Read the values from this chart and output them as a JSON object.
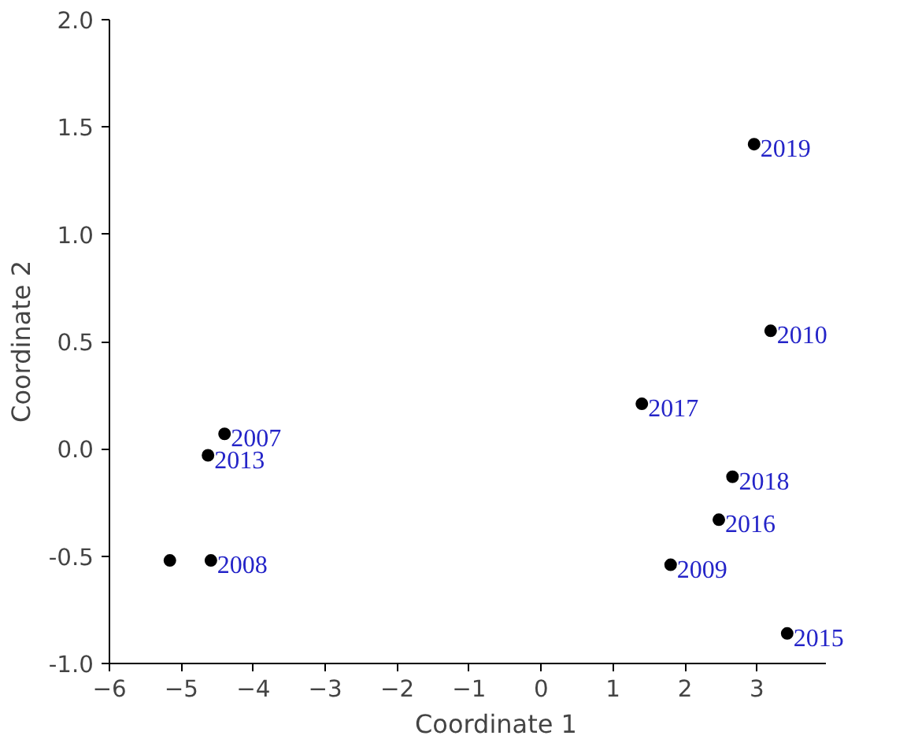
{
  "chart_data": {
    "type": "scatter",
    "xlabel": "Coordinate 1",
    "ylabel": "Coordinate 2",
    "x": [
      2.96,
      3.19,
      1.4,
      2.66,
      2.47,
      1.8,
      3.42,
      -4.4,
      -4.63,
      -5.16,
      -4.59
    ],
    "series": [
      {
        "color": "#000000",
        "values": [
          1.42,
          0.55,
          0.21,
          -0.13,
          -0.33,
          -0.54,
          -0.86,
          0.07,
          -0.03,
          -0.52,
          -0.52
        ],
        "name": null
      }
    ],
    "annotations": [
      {
        "text": "2019",
        "x": 2.96,
        "y": 1.42
      },
      {
        "text": "2010",
        "x": 3.19,
        "y": 0.55
      },
      {
        "text": "2017",
        "x": 1.4,
        "y": 0.21
      },
      {
        "text": "2018",
        "x": 2.66,
        "y": -0.13
      },
      {
        "text": "2016",
        "x": 2.47,
        "y": -0.33
      },
      {
        "text": "2009",
        "x": 1.8,
        "y": -0.54
      },
      {
        "text": "2015",
        "x": 3.42,
        "y": -0.86
      },
      {
        "text": "2007",
        "x": -4.4,
        "y": 0.07
      },
      {
        "text": "2013",
        "x": -4.63,
        "y": -0.03
      },
      {
        "text": "2008",
        "x": -4.59,
        "y": -0.52
      }
    ],
    "xlim": [
      -6,
      3.95
    ],
    "ylim": [
      -1,
      2
    ],
    "xticks": [
      -6,
      -5,
      -4,
      -3,
      -2,
      -1,
      0,
      1,
      2,
      3
    ],
    "yticks": [
      {
        "value": -1,
        "label": "-1.0"
      },
      {
        "value": -0.5,
        "label": "-0.5"
      },
      {
        "value": 0,
        "label": "0.0"
      },
      {
        "value": 0.5,
        "label": "0.5"
      },
      {
        "value": 1,
        "label": "1.0"
      },
      {
        "value": 1.5,
        "label": "1.5"
      },
      {
        "value": 2,
        "label": "2.0"
      }
    ],
    "grid": false,
    "marker": "circle"
  }
}
